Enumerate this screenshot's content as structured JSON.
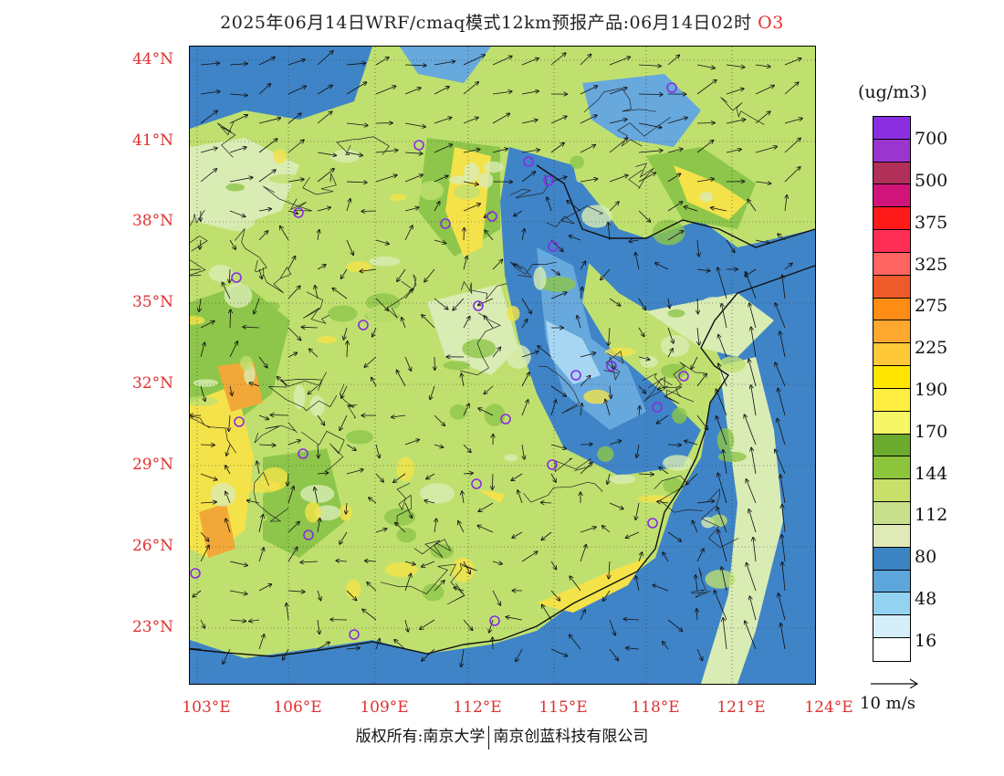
{
  "title": {
    "text": "2025年06月14日WRF/cmaq模式12km预报产品:06月14日02时",
    "species": "O3"
  },
  "map": {
    "lat_labels": [
      "44°N",
      "41°N",
      "38°N",
      "35°N",
      "32°N",
      "29°N",
      "26°N",
      "23°N"
    ],
    "lon_labels": [
      "103°E",
      "106°E",
      "109°E",
      "112°E",
      "115°E",
      "118°E",
      "121°E",
      "124°E"
    ],
    "colors": {
      "sea": "#3f84c7",
      "low": "#d9ecb4",
      "mid": "#bfe06f",
      "high": "#8dc64a",
      "peak": "#f4e24a",
      "orange": "#f2a838",
      "blue_light": "#67a8dd",
      "blue_pale": "#a7d6f2",
      "station": "#8a2be2",
      "coast": "#111111"
    }
  },
  "colorbar": {
    "unit": "(ug/m3)",
    "colors": [
      "#8b2ee0",
      "#9b35cf",
      "#b0305a",
      "#d0147a",
      "#ff1a1a",
      "#ff2e55",
      "#ff6460",
      "#ee5a2a",
      "#ff8c14",
      "#ffa830",
      "#ffc838",
      "#ffe600",
      "#ffee40",
      "#f6f666",
      "#6caa2e",
      "#8cc43c",
      "#c8e06a",
      "#c8e08c",
      "#dfeab8",
      "#3a84c2",
      "#5ca6dc",
      "#94d2f2",
      "#d6eefa",
      "#ffffff"
    ],
    "labels": [
      "700",
      "500",
      "375",
      "325",
      "275",
      "225",
      "190",
      "170",
      "144",
      "112",
      "80",
      "48",
      "16"
    ]
  },
  "vector_reference": {
    "label": "10 m/s"
  },
  "footer": {
    "left": "版权所有:南京大学",
    "right": "南京创蓝科技有限公司"
  }
}
